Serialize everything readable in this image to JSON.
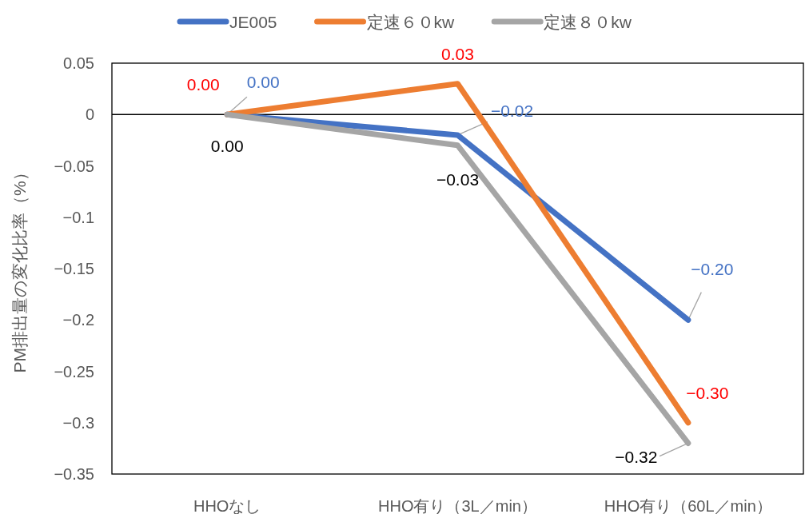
{
  "chart_data": {
    "type": "line",
    "ylabel": "PM排出量の変化比率（%）",
    "categories": [
      "HHOなし",
      "HHO有り（3L／min）",
      "HHO有り（60L／min）"
    ],
    "series": [
      {
        "name": "JE005",
        "color": "#4472c4",
        "values": [
          0,
          -0.02,
          -0.2
        ],
        "value_labels": [
          "0.00",
          "−0.02",
          "−0.20"
        ]
      },
      {
        "name": "定速６０kw",
        "color": "#ed7d31",
        "values": [
          0,
          0.03,
          -0.3
        ],
        "value_labels": [
          "0.00",
          "0.03",
          "−0.30"
        ]
      },
      {
        "name": "定速８０kw",
        "color": "#a5a5a5",
        "values": [
          0,
          -0.03,
          -0.32
        ],
        "value_labels": [
          "0.00",
          "−0.03",
          "−0.32"
        ]
      }
    ],
    "ylim": [
      -0.35,
      0.05
    ],
    "yticks": [
      {
        "value": 0.05,
        "label": "0.05"
      },
      {
        "value": 0,
        "label": "0"
      },
      {
        "value": -0.05,
        "label": "−0.05"
      },
      {
        "value": -0.1,
        "label": "−0.1"
      },
      {
        "value": -0.15,
        "label": "−0.15"
      },
      {
        "value": -0.2,
        "label": "−0.2"
      },
      {
        "value": -0.25,
        "label": "−0.25"
      },
      {
        "value": -0.3,
        "label": "−0.3"
      },
      {
        "value": -0.35,
        "label": "−0.35"
      }
    ],
    "legend": "top",
    "marker": "none",
    "line_style": "solid"
  }
}
